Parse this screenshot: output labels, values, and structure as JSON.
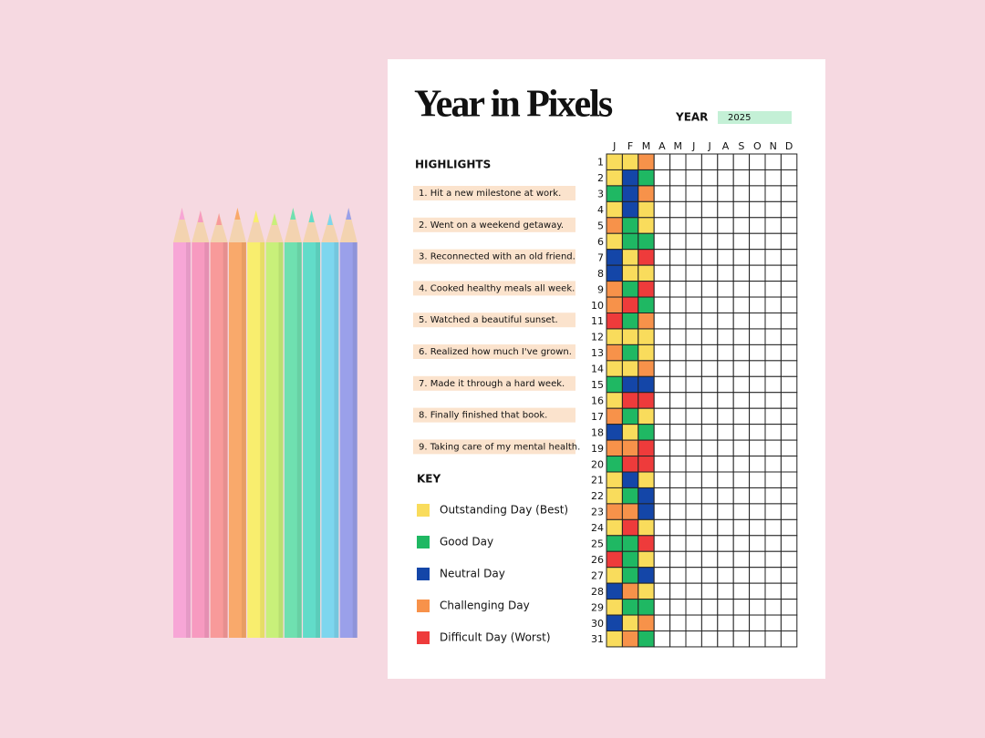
{
  "title": "Year in Pixels",
  "year_label": "YEAR",
  "year": "2025",
  "highlights": {
    "heading": "HIGHLIGHTS",
    "items": [
      "1. Hit a new milestone at work.",
      "2. Went on a weekend getaway.",
      "3. Reconnected with an old friend.",
      "4. Cooked healthy meals all week.",
      "5. Watched a beautiful sunset.",
      "6. Realized how much I've grown.",
      "7. Made it through a hard week.",
      "8. Finally finished that book.",
      "9. Taking care of my mental health."
    ]
  },
  "key": {
    "heading": "KEY",
    "items": [
      {
        "label": "Outstanding Day (Best)",
        "color": "#f9dc5c"
      },
      {
        "label": "Good Day",
        "color": "#1fb863"
      },
      {
        "label": "Neutral Day",
        "color": "#1446a8"
      },
      {
        "label": "Challenging Day",
        "color": "#f7924a"
      },
      {
        "label": "Difficult Day (Worst)",
        "color": "#ee3b3b"
      }
    ]
  },
  "grid": {
    "months": [
      "J",
      "F",
      "M",
      "A",
      "M",
      "J",
      "J",
      "A",
      "S",
      "O",
      "N",
      "D"
    ],
    "days": [
      1,
      2,
      3,
      4,
      5,
      6,
      7,
      8,
      9,
      10,
      11,
      12,
      13,
      14,
      15,
      16,
      17,
      18,
      19,
      20,
      21,
      22,
      23,
      24,
      25,
      26,
      27,
      28,
      29,
      30,
      31
    ],
    "rows": [
      [
        "#f9dc5c",
        "#f9dc5c",
        "#f7924a"
      ],
      [
        "#f9dc5c",
        "#1446a8",
        "#1fb863"
      ],
      [
        "#1fb863",
        "#1446a8",
        "#f7924a"
      ],
      [
        "#f9dc5c",
        "#1446a8",
        "#f9dc5c"
      ],
      [
        "#f7924a",
        "#1fb863",
        "#f9dc5c"
      ],
      [
        "#f9dc5c",
        "#1fb863",
        "#1fb863"
      ],
      [
        "#1446a8",
        "#f9dc5c",
        "#ee3b3b"
      ],
      [
        "#1446a8",
        "#f9dc5c",
        "#f9dc5c"
      ],
      [
        "#f7924a",
        "#1fb863",
        "#ee3b3b"
      ],
      [
        "#f7924a",
        "#ee3b3b",
        "#1fb863"
      ],
      [
        "#ee3b3b",
        "#1fb863",
        "#f7924a"
      ],
      [
        "#f9dc5c",
        "#f9dc5c",
        "#f9dc5c"
      ],
      [
        "#f7924a",
        "#1fb863",
        "#f9dc5c"
      ],
      [
        "#f9dc5c",
        "#f9dc5c",
        "#f7924a"
      ],
      [
        "#1fb863",
        "#1446a8",
        "#1446a8"
      ],
      [
        "#f9dc5c",
        "#ee3b3b",
        "#ee3b3b"
      ],
      [
        "#f7924a",
        "#1fb863",
        "#f9dc5c"
      ],
      [
        "#1446a8",
        "#f9dc5c",
        "#1fb863"
      ],
      [
        "#f7924a",
        "#f7924a",
        "#ee3b3b"
      ],
      [
        "#1fb863",
        "#ee3b3b",
        "#ee3b3b"
      ],
      [
        "#f9dc5c",
        "#1446a8",
        "#f9dc5c"
      ],
      [
        "#f9dc5c",
        "#1fb863",
        "#1446a8"
      ],
      [
        "#f7924a",
        "#f7924a",
        "#1446a8"
      ],
      [
        "#f9dc5c",
        "#ee3b3b",
        "#f9dc5c"
      ],
      [
        "#1fb863",
        "#1fb863",
        "#ee3b3b"
      ],
      [
        "#ee3b3b",
        "#1fb863",
        "#f9dc5c"
      ],
      [
        "#f9dc5c",
        "#1fb863",
        "#1446a8"
      ],
      [
        "#1446a8",
        "#f7924a",
        "#f9dc5c"
      ],
      [
        "#f9dc5c",
        "#1fb863",
        "#1fb863"
      ],
      [
        "#1446a8",
        "#f9dc5c",
        "#f7924a"
      ],
      [
        "#f9dc5c",
        "#f7924a",
        "#1fb863"
      ]
    ]
  }
}
